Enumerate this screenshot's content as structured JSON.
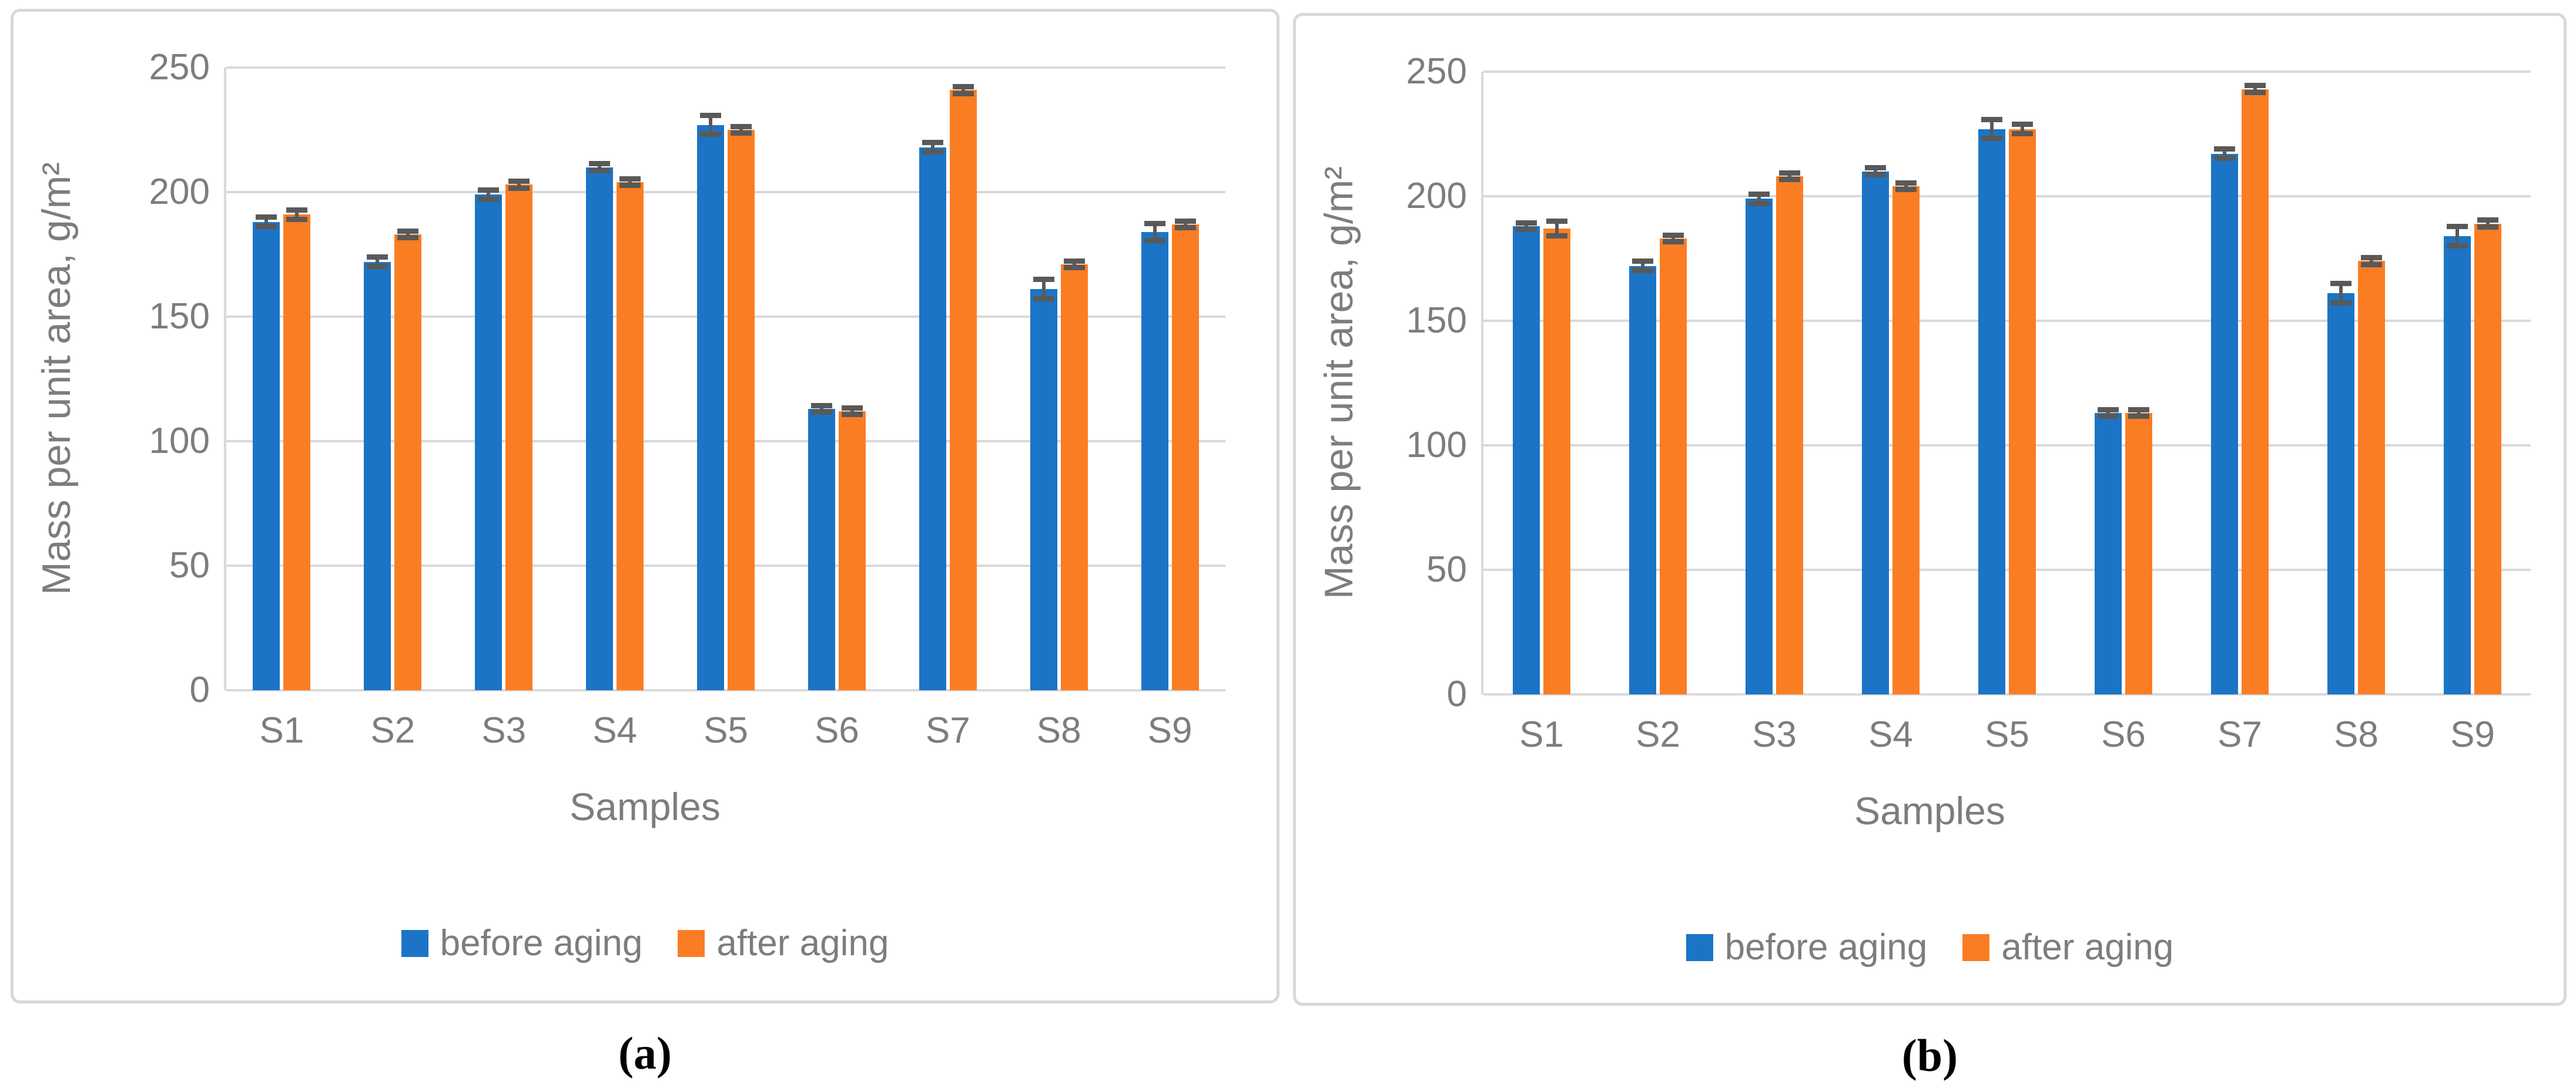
{
  "colors": {
    "before": "#1b74c6",
    "after": "#fb7d23",
    "error_bar": "#595959",
    "gridline": "#d9d9d9",
    "axis_text": "#7d7d7d",
    "panel_border": "#d8d8d8"
  },
  "legend": {
    "before_label": "before aging",
    "after_label": "after aging"
  },
  "captions": {
    "a": "(a)",
    "b": "(b)"
  },
  "chart_data": [
    {
      "id": "a",
      "type": "bar",
      "caption": "(a)",
      "xlabel": "Samples",
      "ylabel": "Mass per unit area, g/m²",
      "ylim": [
        0,
        250
      ],
      "yticks": [
        0,
        50,
        100,
        150,
        200,
        250
      ],
      "grid": true,
      "legend_position": "bottom",
      "categories": [
        "S1",
        "S2",
        "S3",
        "S4",
        "S5",
        "S6",
        "S7",
        "S8",
        "S9"
      ],
      "series": [
        {
          "name": "before aging",
          "color_key": "before",
          "values": [
            188,
            172,
            199,
            210,
            227,
            113,
            218,
            161,
            184
          ],
          "errors": [
            2,
            2,
            2,
            1.5,
            4,
            1.5,
            2,
            4,
            3.5
          ]
        },
        {
          "name": "after aging",
          "color_key": "after",
          "values": [
            191,
            183,
            203,
            204,
            225,
            112,
            241,
            171,
            187
          ],
          "errors": [
            2,
            1.5,
            1.5,
            1.5,
            1.5,
            1.5,
            1.5,
            1.5,
            1.5
          ]
        }
      ]
    },
    {
      "id": "b",
      "type": "bar",
      "caption": "(b)",
      "xlabel": "Samples",
      "ylabel": "Mass per unit area, g/m²",
      "ylim": [
        0,
        250
      ],
      "yticks": [
        0,
        50,
        100,
        150,
        200,
        250
      ],
      "grid": true,
      "legend_position": "bottom",
      "categories": [
        "S1",
        "S2",
        "S3",
        "S4",
        "S5",
        "S6",
        "S7",
        "S8",
        "S9"
      ],
      "series": [
        {
          "name": "before aging",
          "color_key": "before",
          "values": [
            188,
            172,
            199,
            210,
            227,
            113,
            217,
            161,
            184
          ],
          "errors": [
            1.5,
            2,
            2,
            1.5,
            4,
            1.5,
            2,
            4,
            4
          ]
        },
        {
          "name": "after aging",
          "color_key": "after",
          "values": [
            187,
            183,
            208,
            204,
            227,
            113,
            243,
            174,
            189
          ],
          "errors": [
            3,
            1.5,
            1.5,
            1.5,
            2,
            1.5,
            1.5,
            1.5,
            1.5
          ]
        }
      ]
    }
  ]
}
